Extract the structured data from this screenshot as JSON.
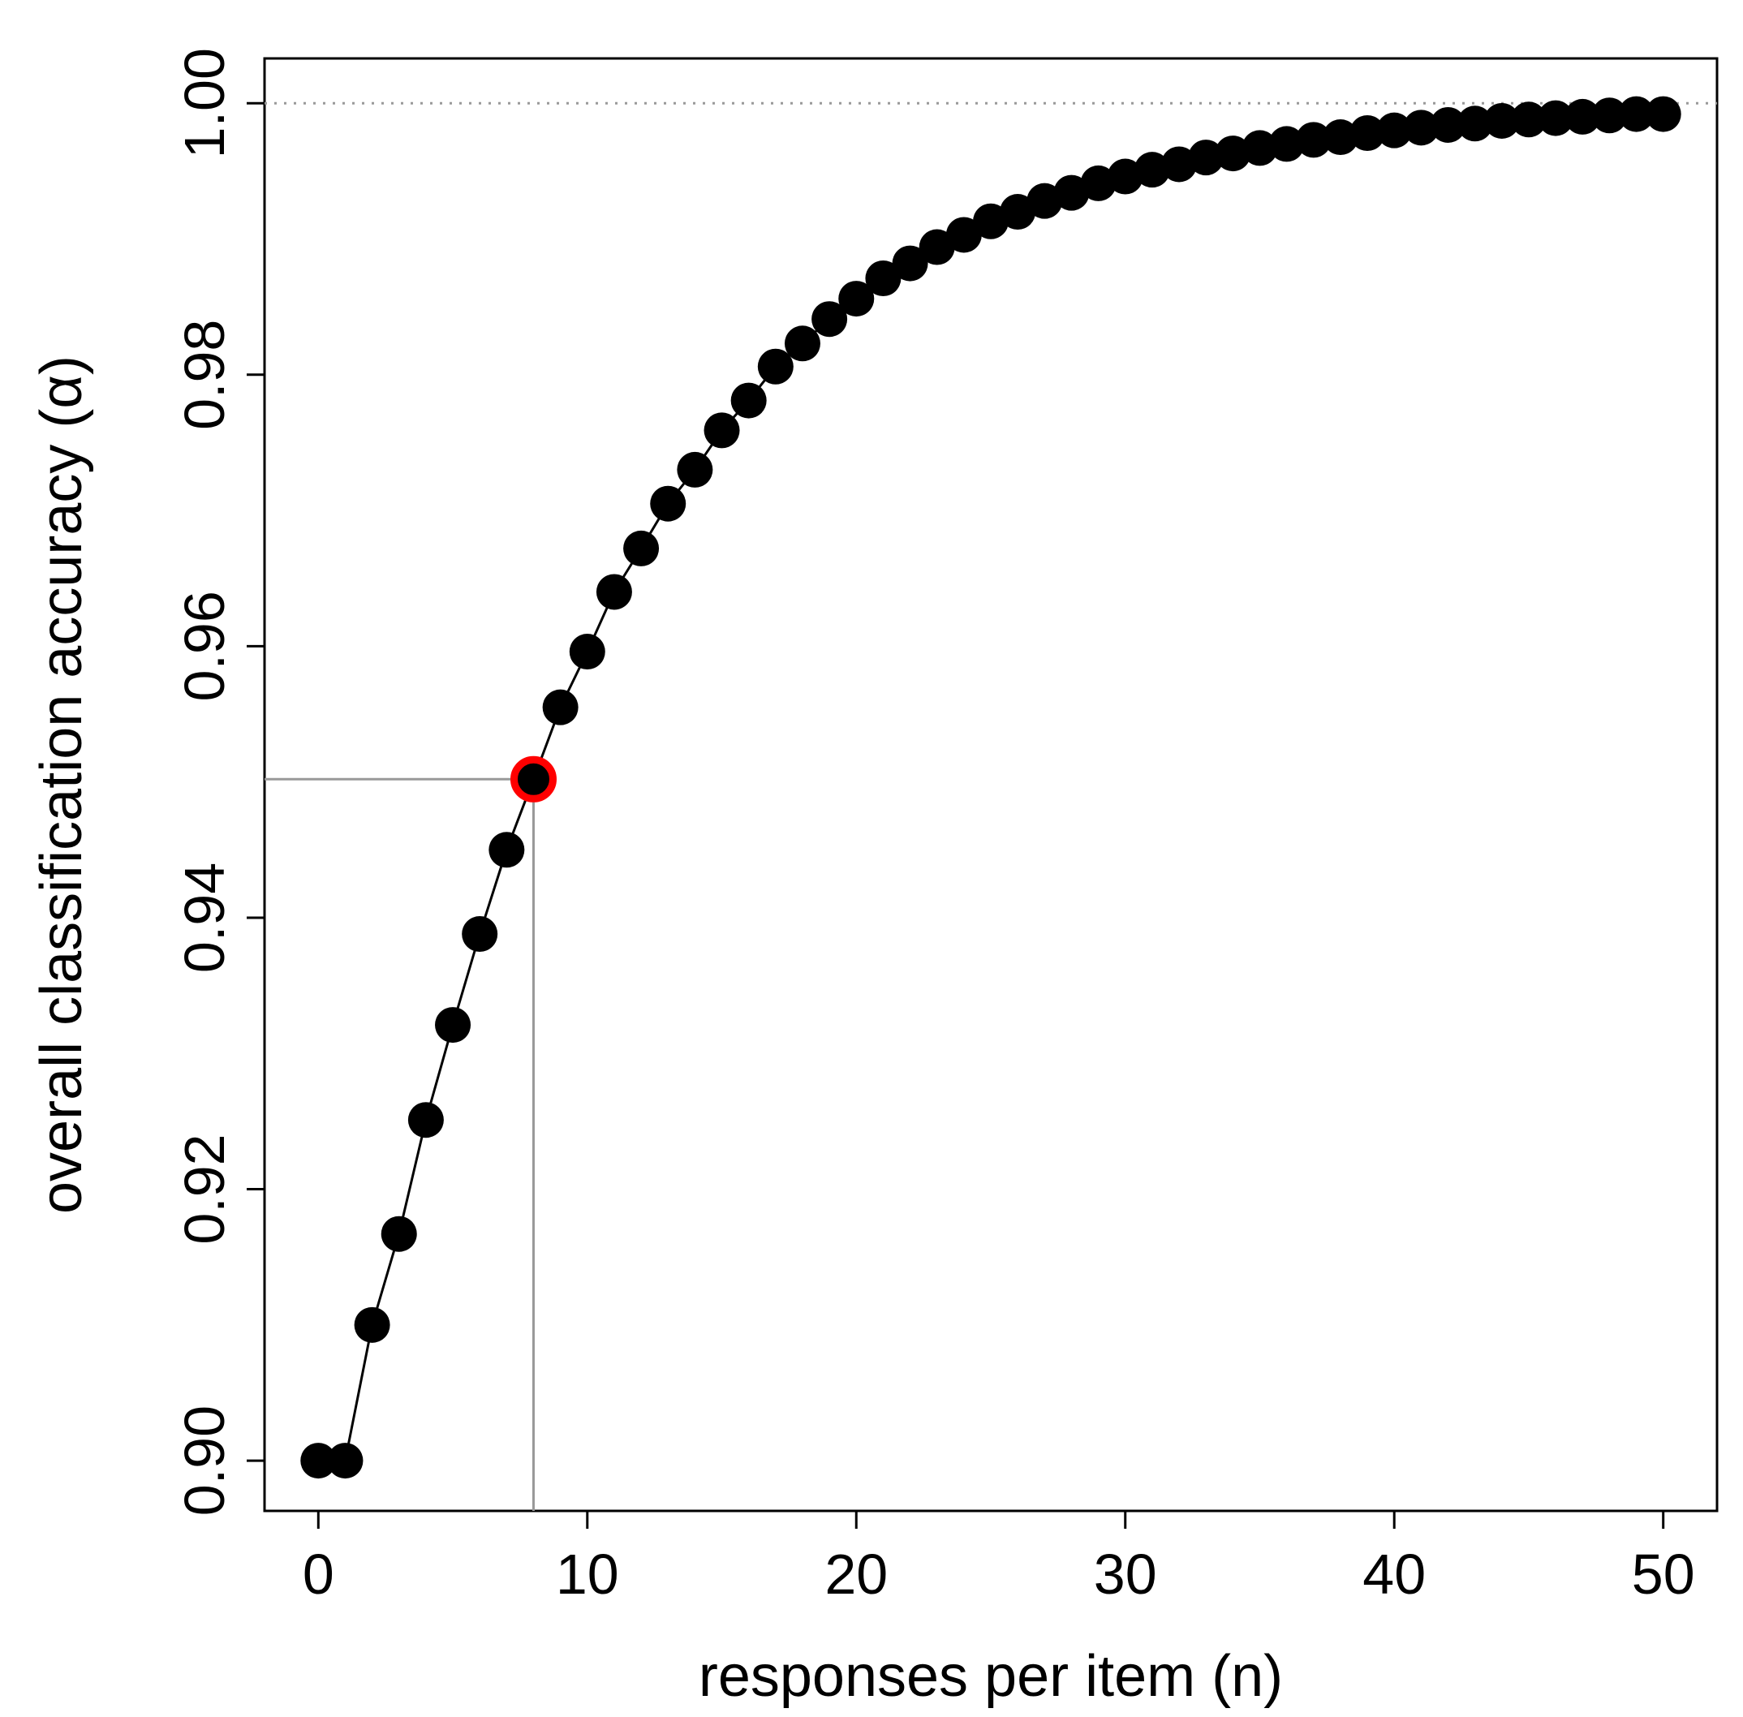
{
  "chart_data": {
    "type": "scatter",
    "title": "",
    "xlabel": "responses per item  (n)",
    "ylabel": "overall classification accuracy  (α)",
    "xlim": [
      -2,
      52
    ],
    "ylim": [
      0.8963,
      1.0033
    ],
    "xticks": [
      0,
      10,
      20,
      30,
      40,
      50
    ],
    "yticks": [
      0.9,
      0.92,
      0.94,
      0.96,
      0.98,
      1.0
    ],
    "xtick_labels": [
      "0",
      "10",
      "20",
      "30",
      "40",
      "50"
    ],
    "ytick_labels": [
      "0.90",
      "0.92",
      "0.94",
      "0.96",
      "0.98",
      "1.00"
    ],
    "grid": false,
    "reference_line": {
      "y": 1.0,
      "style": "dotted",
      "color": "#999999"
    },
    "highlight": {
      "x": 8,
      "y": 0.9502,
      "color": "#ff0000",
      "guide_color": "#999999"
    },
    "series": [
      {
        "color": "#000000",
        "x": [
          0,
          1,
          2,
          3,
          4,
          5,
          6,
          7,
          8,
          9,
          10,
          11,
          12,
          13,
          14,
          15,
          16,
          17,
          18,
          19,
          20,
          21,
          22,
          23,
          24,
          25,
          26,
          27,
          28,
          29,
          30,
          31,
          32,
          33,
          34,
          35,
          36,
          37,
          38,
          39,
          40,
          41,
          42,
          43,
          44,
          45,
          46,
          47,
          48,
          49,
          50
        ],
        "y": [
          0.9,
          0.9,
          0.91,
          0.9167,
          0.9251,
          0.9321,
          0.9388,
          0.945,
          0.9502,
          0.9555,
          0.9596,
          0.964,
          0.9672,
          0.9705,
          0.973,
          0.9759,
          0.9781,
          0.9806,
          0.9823,
          0.9841,
          0.9856,
          0.9871,
          0.9882,
          0.9894,
          0.9903,
          0.9913,
          0.992,
          0.9928,
          0.9934,
          0.9941,
          0.9946,
          0.9951,
          0.9955,
          0.996,
          0.9963,
          0.9967,
          0.997,
          0.9973,
          0.9975,
          0.9978,
          0.998,
          0.9982,
          0.9984,
          0.9985,
          0.9987,
          0.9988,
          0.9989,
          0.999,
          0.9991,
          0.9992,
          0.9992
        ]
      }
    ]
  }
}
